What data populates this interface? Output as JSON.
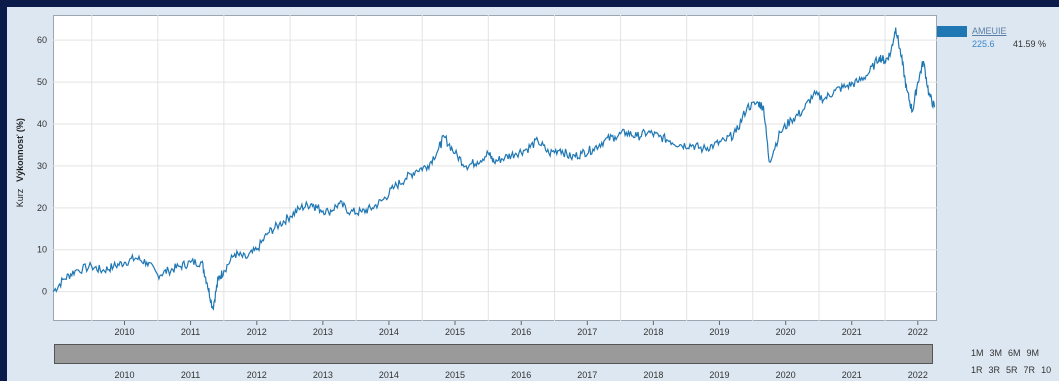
{
  "chart_data": {
    "type": "line",
    "ylabel": "Výkonnosť (%)",
    "ylabel_secondary": "Kurz",
    "ylim": [
      -7,
      66
    ],
    "yticks": [
      0,
      10,
      20,
      30,
      40,
      50,
      60
    ],
    "grid": true,
    "legend_position": "top-right",
    "x_tick_labels": [
      "2010",
      "2011",
      "2012",
      "2013",
      "2014",
      "2015",
      "2016",
      "2017",
      "2018",
      "2019",
      "2020",
      "2021",
      "2022"
    ],
    "navigator_tick_labels": [
      "2010",
      "2011",
      "2012",
      "2013",
      "2014",
      "2015",
      "2016",
      "2017",
      "2018",
      "2019",
      "2020",
      "2021",
      "2022"
    ],
    "series": [
      {
        "name": "AMEUIE",
        "color": "#1f77b4",
        "x": [
          "2009-06",
          "2009-08",
          "2009-10",
          "2010-01",
          "2010-03",
          "2010-05",
          "2010-07",
          "2010-09",
          "2010-11",
          "2011-01",
          "2011-03",
          "2011-05",
          "2011-07",
          "2011-09",
          "2011-10",
          "2011-11",
          "2011-12",
          "2012-01",
          "2012-03",
          "2012-05",
          "2012-07",
          "2012-09",
          "2012-11",
          "2013-01",
          "2013-03",
          "2013-05",
          "2013-06",
          "2013-08",
          "2013-10",
          "2013-12",
          "2014-02",
          "2014-04",
          "2014-06",
          "2014-08",
          "2014-10",
          "2014-12",
          "2015-02",
          "2015-04",
          "2015-05",
          "2015-07",
          "2015-09",
          "2015-11",
          "2016-01",
          "2016-02",
          "2016-04",
          "2016-06",
          "2016-08",
          "2016-10",
          "2016-12",
          "2017-02",
          "2017-04",
          "2017-06",
          "2017-08",
          "2017-10",
          "2017-12",
          "2018-02",
          "2018-04",
          "2018-06",
          "2018-08",
          "2018-10",
          "2018-12",
          "2019-02",
          "2019-04",
          "2019-06",
          "2019-08",
          "2019-10",
          "2019-12",
          "2020-02",
          "2020-03",
          "2020-04",
          "2020-06",
          "2020-08",
          "2020-10",
          "2020-12",
          "2021-02",
          "2021-04",
          "2021-06",
          "2021-08",
          "2021-10",
          "2021-12",
          "2022-01",
          "2022-02",
          "2022-03",
          "2022-04",
          "2022-05",
          "2022-06",
          "2022-07",
          "2022-08",
          "2022-09",
          "2022-10"
        ],
        "y": [
          0,
          3,
          5,
          6,
          5,
          6,
          7,
          8,
          7,
          4,
          5,
          6,
          7,
          7,
          2,
          -4,
          3,
          5,
          9,
          8,
          10,
          14,
          16,
          18,
          20,
          21,
          20,
          19,
          21,
          19,
          19,
          20,
          22,
          25,
          27,
          29,
          30,
          34,
          37,
          33,
          30,
          31,
          33,
          31,
          32,
          33,
          34,
          36,
          33,
          34,
          32,
          33,
          34,
          36,
          37,
          38,
          37,
          38,
          37,
          36,
          35,
          35,
          34,
          35,
          36,
          38,
          44,
          45,
          44,
          31,
          38,
          41,
          43,
          47,
          46,
          48,
          49,
          50,
          52,
          56,
          55,
          57,
          63,
          56,
          48,
          43,
          50,
          55,
          47,
          44
        ]
      }
    ]
  },
  "legend": {
    "name": "AMEUIE",
    "value": "225.6",
    "percent": "41.59 %"
  },
  "range_buttons": {
    "row1": [
      "1M",
      "3M",
      "6M",
      "9M"
    ],
    "row2": [
      "1R",
      "3R",
      "5R",
      "7R",
      "10"
    ]
  }
}
